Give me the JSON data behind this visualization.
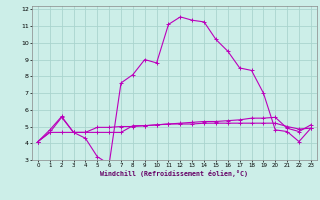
{
  "xlabel": "Windchill (Refroidissement éolien,°C)",
  "background_color": "#cceee8",
  "grid_color": "#aad4ce",
  "line_color": "#bb00bb",
  "xlim": [
    -0.5,
    23.5
  ],
  "ylim": [
    3,
    12.2
  ],
  "xticks": [
    0,
    1,
    2,
    3,
    4,
    5,
    6,
    7,
    8,
    9,
    10,
    11,
    12,
    13,
    14,
    15,
    16,
    17,
    18,
    19,
    20,
    21,
    22,
    23
  ],
  "yticks": [
    3,
    4,
    5,
    6,
    7,
    8,
    9,
    10,
    11,
    12
  ],
  "series1_x": [
    0,
    1,
    2,
    3,
    4,
    5,
    6,
    7,
    8,
    9,
    10,
    11,
    12,
    13,
    14,
    15,
    16,
    17,
    18,
    19,
    20,
    21,
    22,
    23
  ],
  "series1_y": [
    4.1,
    4.8,
    5.6,
    4.65,
    4.3,
    3.2,
    2.75,
    7.6,
    8.1,
    9.0,
    8.8,
    11.1,
    11.55,
    11.35,
    11.25,
    10.2,
    9.5,
    8.5,
    8.35,
    7.0,
    4.8,
    4.7,
    4.1,
    4.9
  ],
  "series2_x": [
    0,
    1,
    2,
    3,
    4,
    5,
    6,
    7,
    8,
    9,
    10,
    11,
    12,
    13,
    14,
    15,
    16,
    17,
    18,
    19,
    20,
    21,
    22,
    23
  ],
  "series2_y": [
    4.1,
    4.65,
    4.65,
    4.65,
    4.65,
    4.65,
    4.65,
    4.65,
    5.05,
    5.05,
    5.1,
    5.15,
    5.15,
    5.15,
    5.2,
    5.2,
    5.2,
    5.2,
    5.2,
    5.2,
    5.2,
    5.0,
    4.85,
    4.9
  ],
  "series3_x": [
    0,
    1,
    2,
    3,
    4,
    5,
    6,
    7,
    8,
    9,
    10,
    11,
    12,
    13,
    14,
    15,
    16,
    17,
    18,
    19,
    20,
    21,
    22,
    23
  ],
  "series3_y": [
    4.1,
    4.65,
    5.55,
    4.65,
    4.65,
    4.95,
    4.95,
    5.0,
    5.0,
    5.05,
    5.1,
    5.15,
    5.2,
    5.25,
    5.3,
    5.3,
    5.35,
    5.4,
    5.5,
    5.5,
    5.55,
    4.9,
    4.7,
    5.1
  ]
}
